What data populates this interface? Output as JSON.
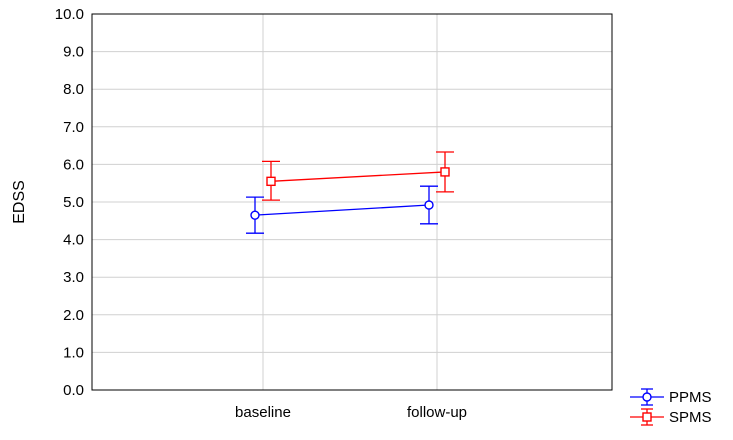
{
  "chart_data": {
    "type": "line",
    "title": "",
    "xlabel": "",
    "ylabel": "EDSS",
    "categories": [
      "baseline",
      "follow-up"
    ],
    "ylim": [
      0,
      10
    ],
    "y_ticks": [
      "0.0",
      "1.0",
      "2.0",
      "3.0",
      "4.0",
      "5.0",
      "6.0",
      "7.0",
      "8.0",
      "9.0",
      "10.0"
    ],
    "grid": true,
    "legend_position": "bottom-right",
    "series": [
      {
        "name": "PPMS",
        "color": "#0000ff",
        "marker": "circle",
        "values": [
          4.65,
          4.92
        ],
        "error_low": [
          4.17,
          4.42
        ],
        "error_high": [
          5.13,
          5.42
        ]
      },
      {
        "name": "SPMS",
        "color": "#ff0000",
        "marker": "square",
        "values": [
          5.55,
          5.8
        ],
        "error_low": [
          5.05,
          5.27
        ],
        "error_high": [
          6.08,
          6.33
        ]
      }
    ]
  }
}
